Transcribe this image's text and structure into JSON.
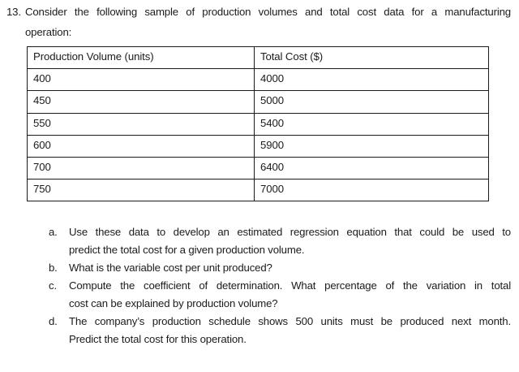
{
  "question": {
    "number": "13.",
    "intro_lines": [
      "Consider the following sample of production volumes and total cost data for a manufacturing",
      "operation:"
    ]
  },
  "table": {
    "headers": [
      "Production Volume (units)",
      "Total Cost ($)"
    ],
    "rows": [
      [
        "400",
        "4000"
      ],
      [
        "450",
        "5000"
      ],
      [
        "550",
        "5400"
      ],
      [
        "600",
        "5900"
      ],
      [
        "700",
        "6400"
      ],
      [
        "750",
        "7000"
      ]
    ]
  },
  "subquestions": [
    {
      "label": "a.",
      "lines": [
        "Use these data to develop an estimated regression equation that could be used to",
        "predict the total cost for a given production volume."
      ]
    },
    {
      "label": "b.",
      "lines": [
        "What is the variable cost per unit produced?"
      ]
    },
    {
      "label": "c.",
      "lines": [
        "Compute the coefficient of determination. What percentage of the variation in total",
        "cost can be explained by production volume?"
      ]
    },
    {
      "label": "d.",
      "lines": [
        "The company’s production schedule shows 500 units must be produced next month.",
        "Predict the total cost for this operation."
      ]
    }
  ],
  "colors": {
    "text": "#1b1b1b",
    "table_border": "#1b1b1b",
    "background": "#ffffff"
  }
}
